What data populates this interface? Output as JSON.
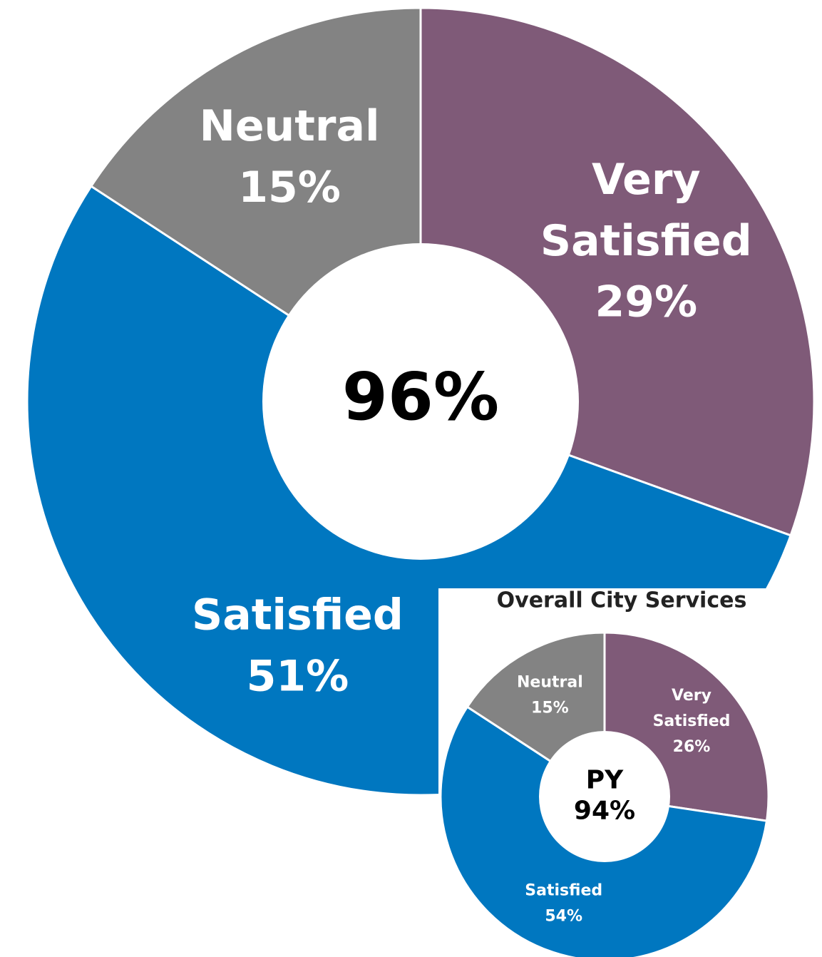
{
  "chart_data": [
    {
      "type": "pie",
      "donut": true,
      "categories": [
        "Very Satisfied",
        "Satisfied",
        "Neutral"
      ],
      "values": [
        29,
        51,
        15
      ],
      "value_labels": [
        "29%",
        "51%",
        "15%"
      ],
      "colors": [
        "#7f5a78",
        "#0077c0",
        "#838383"
      ],
      "center_label": "96%"
    },
    {
      "type": "pie",
      "donut": true,
      "title": "Overall City Services",
      "categories": [
        "Very Satisfied",
        "Satisfied",
        "Neutral"
      ],
      "values": [
        26,
        54,
        15
      ],
      "value_labels": [
        "26%",
        "54%",
        "15%"
      ],
      "colors": [
        "#7f5a78",
        "#0077c0",
        "#838383"
      ],
      "center_label": "PY 94%"
    }
  ]
}
